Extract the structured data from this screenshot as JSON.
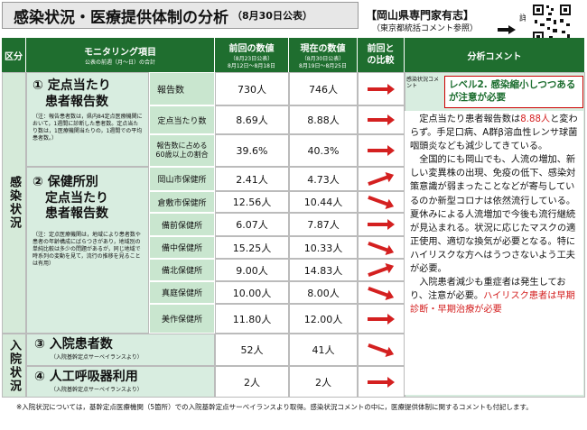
{
  "header": {
    "title": "感染状況・医療提供体制の分析",
    "date": "（8月30日公表）",
    "expert": "【岡山県専門家有志】",
    "expert_sub": "（東京都統括コメント参照）",
    "detail": "詳細"
  },
  "columns": {
    "section": "区分",
    "item": "モニタリング項目",
    "item_sub": "公表の前週（月～日）の合計",
    "prev": "前回の数値",
    "prev_sub": "（8月23日公表）\n8月12日～8月18日",
    "curr": "現在の数値",
    "curr_sub": "（8月30日公表）\n8月19日～8月25日",
    "compare": "前回との比較",
    "analysis": "分析コメント"
  },
  "sections": {
    "infection": "感染状況",
    "hospital": "入院状況"
  },
  "categories": {
    "c1_title": "① 定点当たり\n　患者報告数",
    "c1_note": "（注：報告患者数は，県内84定点医療機関において，1週間に診断した患者数。定点当たり数は，1医療機関当たりの，1週間での平均患者数。）",
    "c2_title": "② 保健所別\n　定点当たり\n　患者報告数",
    "c2_note": "（注：定点医療機関は，地域により患者数や患者の年齢構成にばらつきがあり，地域別の単純比較は多少の問題があるが，同じ地域で時系列の変動を見て，流行の推移を見ることは有用）",
    "c3_title": "③ 入院患者数",
    "c3_note": "（入院基幹定点サーベイランスより）",
    "c4_title": "④ 人工呼吸器利用",
    "c4_note": "（入院基幹定点サーベイランスより）"
  },
  "rows": [
    {
      "label": "報告数",
      "prev": "730人",
      "curr": "746人"
    },
    {
      "label": "定点当たり数",
      "prev": "8.69人",
      "curr": "8.88人"
    },
    {
      "label": "報告数に占める60歳以上の割合",
      "prev": "39.6%",
      "curr": "40.3%"
    },
    {
      "label": "岡山市保健所",
      "prev": "2.41人",
      "curr": "4.73人"
    },
    {
      "label": "倉敷市保健所",
      "prev": "12.56人",
      "curr": "10.44人"
    },
    {
      "label": "備前保健所",
      "prev": "6.07人",
      "curr": "7.87人"
    },
    {
      "label": "備中保健所",
      "prev": "15.25人",
      "curr": "10.33人"
    },
    {
      "label": "備北保健所",
      "prev": "9.00人",
      "curr": "14.83人"
    },
    {
      "label": "真庭保健所",
      "prev": "10.00人",
      "curr": "8.00人"
    },
    {
      "label": "美作保健所",
      "prev": "11.80人",
      "curr": "12.00人"
    },
    {
      "label": "",
      "prev": "52人",
      "curr": "41人"
    },
    {
      "label": "",
      "prev": "2人",
      "curr": "2人"
    }
  ],
  "comment": {
    "label": "感染状況コメント",
    "level": "レベル2. 感染縮小しつつあるが注意が必要",
    "p1a": "定点当たり患者報告数は",
    "p1b": "8.88人",
    "p1c": "と変わらず。手足口病、A群β溶血性レンサ球菌咽頭炎なども減少してきている。",
    "p2": "全国的にも岡山でも、人流の増加、新しい変異株の出現、免疫の低下、感染対策意識が弱まったことなどが寄与しているのか新型コロナは依然流行している。夏休みによる人流増加で今後も流行継続が見込まれる。状況に応じたマスクの適正使用、適切な換気が必要となる。特にハイリスクな方へはうつさないよう工夫が必要。",
    "p3a": "入院患者減少も重症者は発生しており、注意が必要。",
    "p3b": "ハイリスク患者は早期診断・早期治療が必要"
  },
  "footer": "※入院状況については，基幹定点医療機関（5箇所）での入院基幹定点サーベイランスより取得。感染状況コメントの中に，医療提供体制に関するコメントも付記します。",
  "colors": {
    "header_green": "#1f6e2f",
    "light_green": "#d8ede0",
    "arrow_red": "#d42020"
  }
}
